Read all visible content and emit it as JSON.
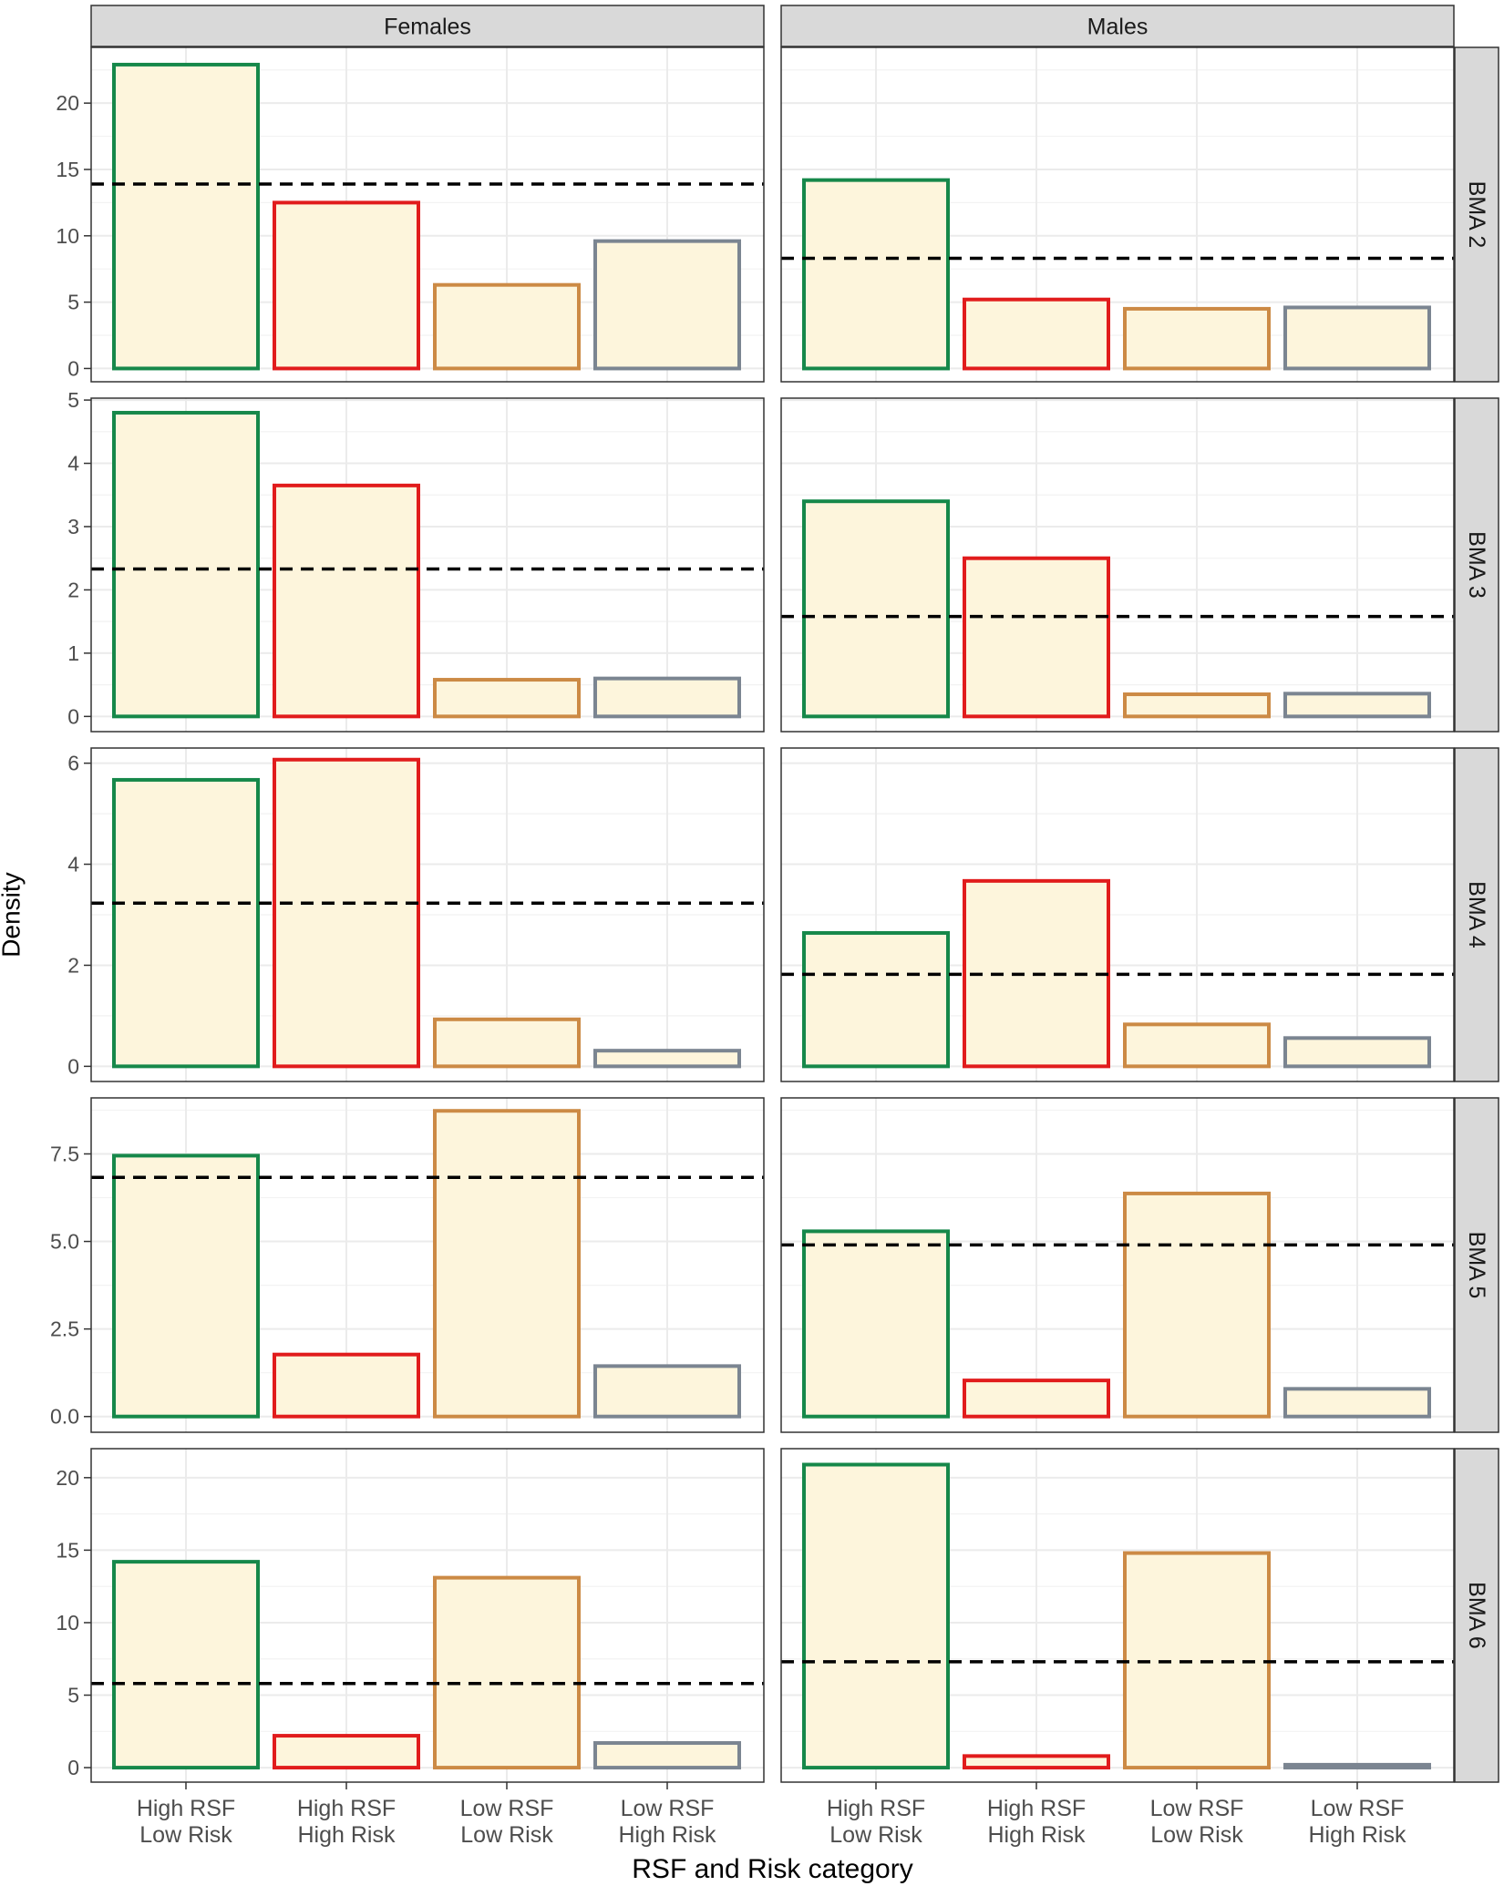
{
  "chart_data": {
    "type": "bar",
    "layout": "facet-grid",
    "xlabel": "RSF and Risk category",
    "ylabel": "Density",
    "columns": [
      "Females",
      "Males"
    ],
    "rows": [
      "BMA 2",
      "BMA 3",
      "BMA 4",
      "BMA 5",
      "BMA 6"
    ],
    "categories": [
      [
        "High RSF",
        "Low Risk"
      ],
      [
        "High RSF",
        "High Risk"
      ],
      [
        "Low RSF",
        "Low Risk"
      ],
      [
        "Low RSF",
        "High Risk"
      ]
    ],
    "bar_fill": "#fdf5dc",
    "bar_outline_colors": [
      "#16884a",
      "#e11c1c",
      "#cc8a45",
      "#7b8591"
    ],
    "reference_line": {
      "style": "dashed",
      "color": "#000000"
    },
    "grid": true,
    "theme": {
      "strip_fill": "#d9d9d9",
      "grid_color": "#ebebeb",
      "panel_border": "#333333"
    },
    "panels": [
      {
        "row": "BMA 2",
        "col": "Females",
        "ylim": [
          -1.0,
          24.2
        ],
        "yticks": [
          0,
          5,
          10,
          15,
          20
        ],
        "tick_labels": [
          "0",
          "5",
          "10",
          "15",
          "20"
        ],
        "values": [
          22.9,
          12.5,
          6.3,
          9.6
        ],
        "reference": 13.9
      },
      {
        "row": "BMA 2",
        "col": "Males",
        "ylim": [
          -1.0,
          24.2
        ],
        "yticks": [
          0,
          5,
          10,
          15,
          20
        ],
        "tick_labels": [
          "0",
          "5",
          "10",
          "15",
          "20"
        ],
        "values": [
          14.2,
          5.2,
          4.5,
          4.6
        ],
        "reference": 8.3
      },
      {
        "row": "BMA 3",
        "col": "Females",
        "ylim": [
          -0.24,
          5.03
        ],
        "yticks": [
          0,
          1,
          2,
          3,
          4,
          5
        ],
        "tick_labels": [
          "0",
          "1",
          "2",
          "3",
          "4",
          "5"
        ],
        "values": [
          4.8,
          3.65,
          0.58,
          0.6
        ],
        "reference": 2.33
      },
      {
        "row": "BMA 3",
        "col": "Males",
        "ylim": [
          -0.24,
          5.03
        ],
        "yticks": [
          0,
          1,
          2,
          3,
          4,
          5
        ],
        "tick_labels": [
          "0",
          "1",
          "2",
          "3",
          "4",
          "5"
        ],
        "values": [
          3.4,
          2.5,
          0.35,
          0.36
        ],
        "reference": 1.58
      },
      {
        "row": "BMA 4",
        "col": "Females",
        "ylim": [
          -0.3,
          6.3
        ],
        "yticks": [
          0,
          2,
          4,
          6
        ],
        "tick_labels": [
          "0",
          "2",
          "4",
          "6"
        ],
        "values": [
          5.67,
          6.07,
          0.93,
          0.31
        ],
        "reference": 3.23
      },
      {
        "row": "BMA 4",
        "col": "Males",
        "ylim": [
          -0.3,
          6.3
        ],
        "yticks": [
          0,
          2,
          4,
          6
        ],
        "tick_labels": [
          "0",
          "2",
          "4",
          "6"
        ],
        "values": [
          2.64,
          3.67,
          0.83,
          0.56
        ],
        "reference": 1.82
      },
      {
        "row": "BMA 5",
        "col": "Females",
        "ylim": [
          -0.45,
          9.1
        ],
        "yticks": [
          0,
          2.5,
          5.0,
          7.5
        ],
        "tick_labels": [
          "0.0",
          "2.5",
          "5.0",
          "7.5"
        ],
        "values": [
          7.45,
          1.77,
          8.73,
          1.44
        ],
        "reference": 6.83
      },
      {
        "row": "BMA 5",
        "col": "Males",
        "ylim": [
          -0.45,
          9.1
        ],
        "yticks": [
          0,
          2.5,
          5.0,
          7.5
        ],
        "tick_labels": [
          "0.0",
          "2.5",
          "5.0",
          "7.5"
        ],
        "values": [
          5.29,
          1.03,
          6.37,
          0.79
        ],
        "reference": 4.9
      },
      {
        "row": "BMA 6",
        "col": "Females",
        "ylim": [
          -1.0,
          22.0
        ],
        "yticks": [
          0,
          5,
          10,
          15,
          20
        ],
        "tick_labels": [
          "0",
          "5",
          "10",
          "15",
          "20"
        ],
        "values": [
          14.2,
          2.2,
          13.1,
          1.7
        ],
        "reference": 5.8
      },
      {
        "row": "BMA 6",
        "col": "Males",
        "ylim": [
          -1.0,
          22.0
        ],
        "yticks": [
          0,
          5,
          10,
          15,
          20
        ],
        "tick_labels": [
          "0",
          "5",
          "10",
          "15",
          "20"
        ],
        "values": [
          20.9,
          0.8,
          14.8,
          0.2
        ],
        "reference": 7.3
      }
    ]
  }
}
